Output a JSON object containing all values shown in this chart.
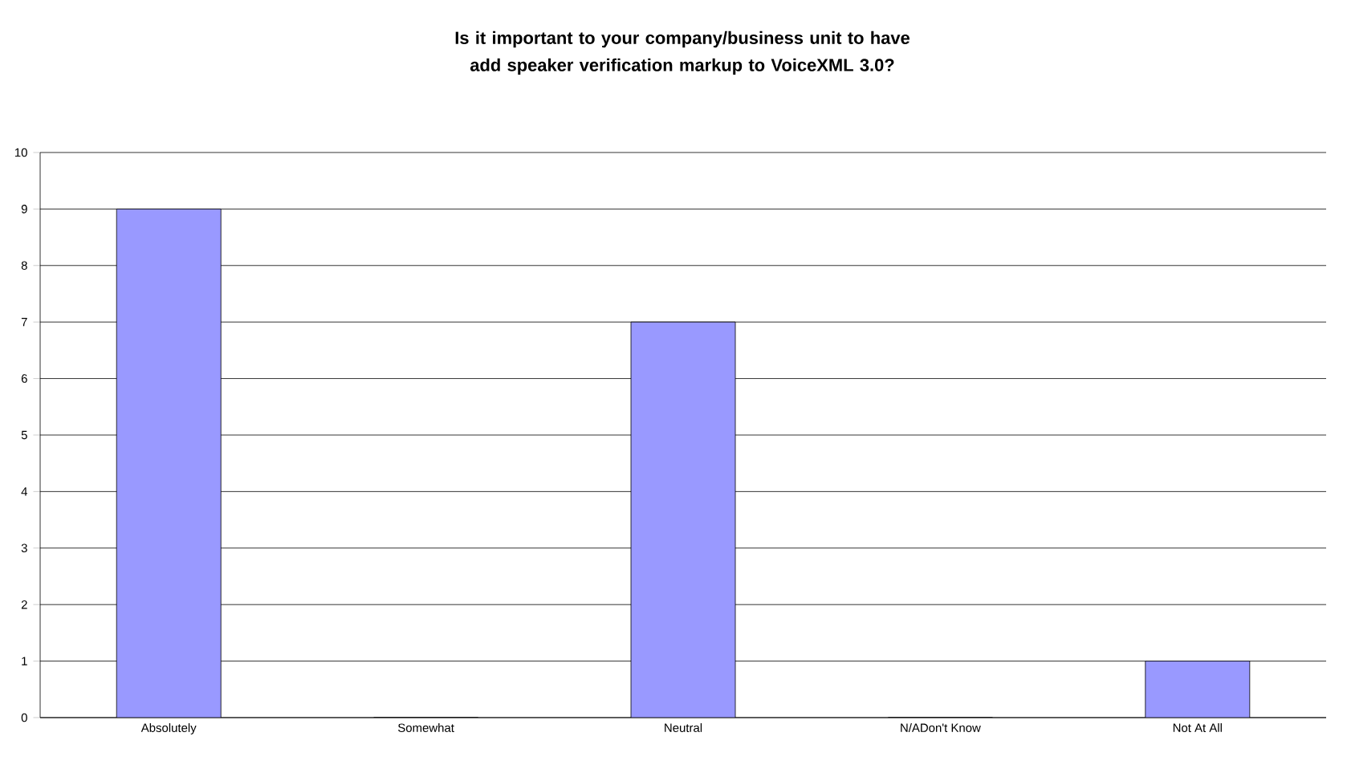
{
  "chart_data": {
    "type": "bar",
    "title": "Is it important to your company/business unit to have add speaker verification markup to VoiceXML 3.0?",
    "categories": [
      "Absolutely",
      "Somewhat",
      "Neutral",
      "N/ADon't Know",
      "Not At All"
    ],
    "values": [
      9,
      0,
      7,
      0,
      1
    ],
    "color": "#9999ff",
    "ylim": [
      0,
      10
    ],
    "yticks": [
      0,
      1,
      2,
      3,
      4,
      5,
      6,
      7,
      8,
      9,
      10
    ],
    "grid": "y"
  }
}
